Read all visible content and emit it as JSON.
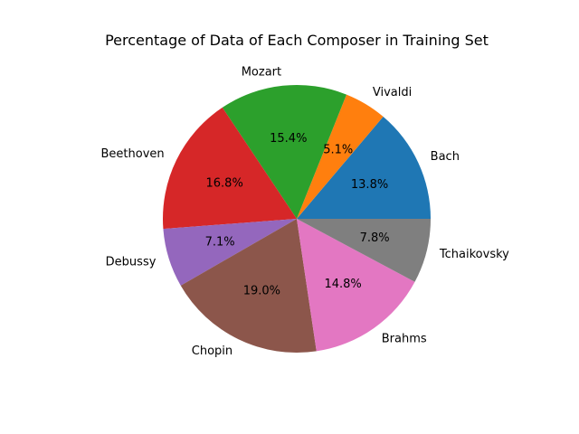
{
  "chart_data": {
    "type": "pie",
    "title": "Percentage of Data of Each Composer in Training Set",
    "labels": [
      "Bach",
      "Vivaldi",
      "Mozart",
      "Beethoven",
      "Debussy",
      "Chopin",
      "Brahms",
      "Tchaikovsky"
    ],
    "values": [
      13.8,
      5.1,
      15.4,
      16.8,
      7.1,
      19.0,
      14.8,
      7.8
    ],
    "value_labels": [
      "13.8%",
      "5.1%",
      "15.4%",
      "16.8%",
      "7.1%",
      "19.0%",
      "14.8%",
      "7.8%"
    ],
    "colors": [
      "#1f77b4",
      "#ff7f0e",
      "#2ca02c",
      "#d62728",
      "#9467bd",
      "#8c564b",
      "#e377c2",
      "#7f7f7f"
    ],
    "start_angle_deg": 0,
    "direction": "counterclockwise"
  }
}
